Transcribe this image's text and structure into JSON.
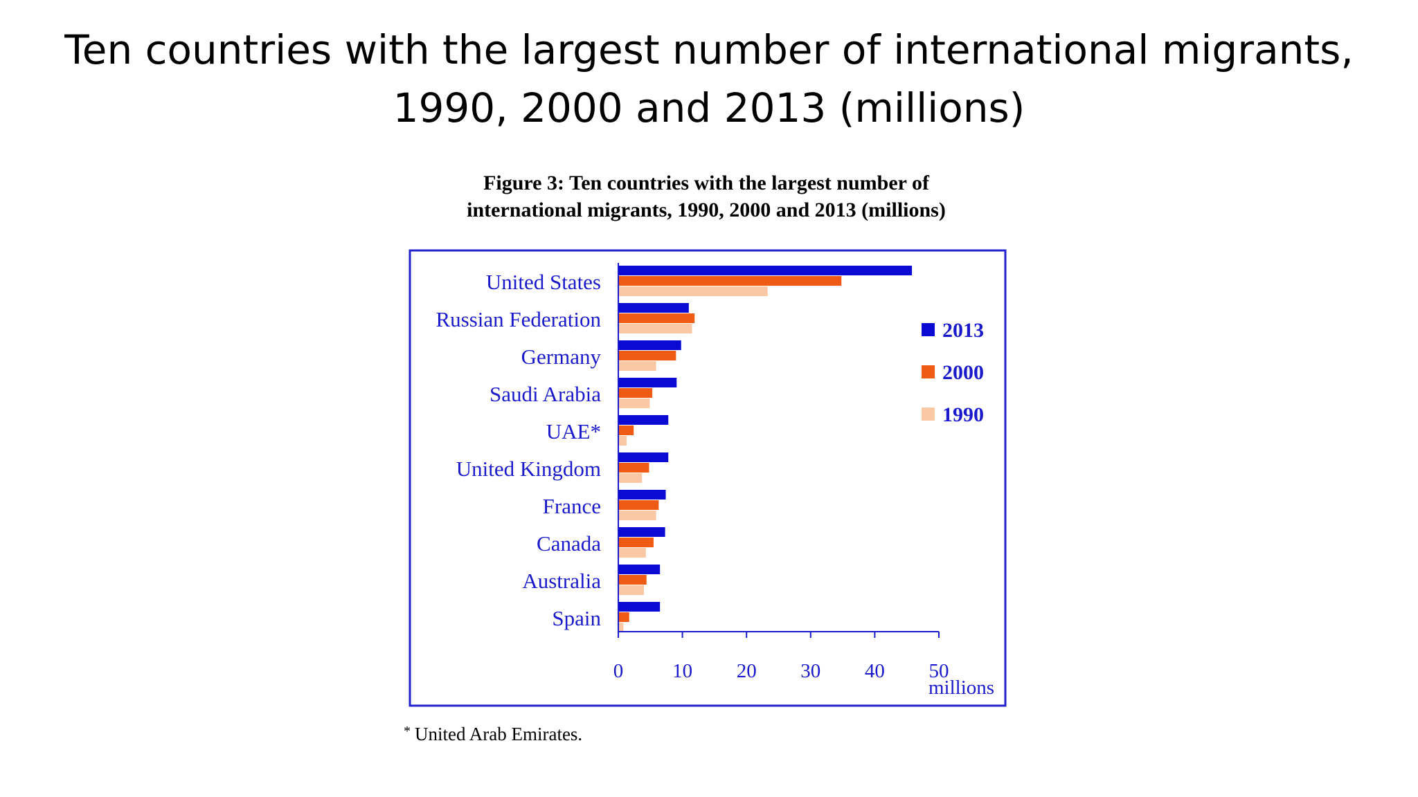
{
  "slide": {
    "title_line1": "Ten countries with the largest number of international migrants,",
    "title_line2": "1990, 2000 and 2013 (millions)"
  },
  "figure": {
    "caption_line1": "Figure 3: Ten countries with the largest number of",
    "caption_line2": "international migrants, 1990, 2000 and 2013 (millions)",
    "footnote_mark": "*",
    "footnote_text": "United Arab Emirates."
  },
  "chart_data": {
    "type": "bar",
    "orientation": "horizontal",
    "categories": [
      "United States",
      "Russian Federation",
      "Germany",
      "Saudi Arabia",
      "UAE*",
      "United Kingdom",
      "France",
      "Canada",
      "Australia",
      "Spain"
    ],
    "series": [
      {
        "name": "2013",
        "color": "#0a0ad2",
        "values": [
          45.8,
          11.0,
          9.8,
          9.1,
          7.8,
          7.8,
          7.4,
          7.3,
          6.5,
          6.5
        ]
      },
      {
        "name": "2000",
        "color": "#ef5a14",
        "values": [
          34.8,
          11.9,
          9.0,
          5.3,
          2.4,
          4.8,
          6.3,
          5.5,
          4.4,
          1.7
        ]
      },
      {
        "name": "1990",
        "color": "#fbc8a6",
        "values": [
          23.3,
          11.5,
          5.9,
          4.9,
          1.3,
          3.7,
          5.9,
          4.3,
          4.0,
          0.8
        ]
      }
    ],
    "xlim": [
      0,
      50
    ],
    "xticks": [
      "0",
      "10",
      "20",
      "30",
      "40",
      "50"
    ],
    "xlabel": "millions",
    "ylabel": "",
    "legend_position": "right",
    "grid": false
  }
}
